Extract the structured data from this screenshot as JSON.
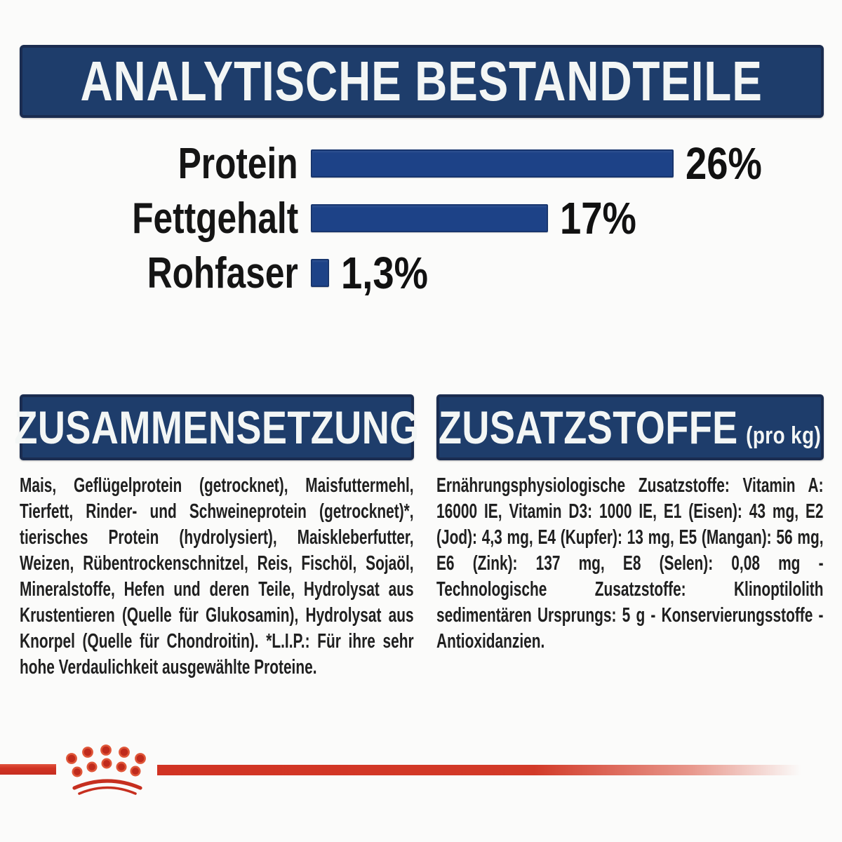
{
  "analytical": {
    "title": "ANALYTISCHE BESTANDTEILE"
  },
  "chart_data": {
    "type": "bar",
    "orientation": "horizontal",
    "title": "ANALYTISCHE BESTANDTEILE",
    "categories": [
      "Protein",
      "Fettgehalt",
      "Rohfaser"
    ],
    "values": [
      26,
      17,
      1.3
    ],
    "value_labels": [
      "26%",
      "17%",
      "1,3%"
    ],
    "unit": "%",
    "xlim": [
      0,
      30
    ],
    "grid": false,
    "legend": "none",
    "bar_color": "#1d4287"
  },
  "composition": {
    "title": "ZUSAMMENSETZUNG",
    "body": "Mais, Geflügelprotein (getrocknet), Maisfuttermehl, Tierfett, Rinder- und Schweineprotein (getrocknet)*, tierisches Protein (hydrolysiert), Maiskleberfutter, Weizen, Rübentrockenschnitzel, Reis, Fischöl, Sojaöl, Mineralstoffe, Hefen und deren Teile, Hydrolysat aus Krustentieren (Quelle für Glukosamin), Hydrolysat aus Knorpel (Quelle für Chondroitin). *L.I.P.: Für ihre sehr hohe Verdaulichkeit ausgewählte Proteine."
  },
  "additives": {
    "title": "ZUSATZSTOFFE",
    "unit": "(pro kg)",
    "body": "Ernährungsphysiologische Zusatzstoffe: Vitamin A: 16000 IE, Vitamin D3: 1000 IE, E1 (Eisen): 43 mg, E2 (Jod): 4,3 mg, E4 (Kupfer): 13 mg, E5 (Mangan): 56 mg, E6 (Zink): 137 mg, E8 (Selen): 0,08 mg - Technologische Zusatzstoffe: Klinoptilolith sedimentären Ursprungs: 5 g - Konservierungsstoffe - Antioxidanzien."
  },
  "footer": {
    "logo": "royal-canin-crown"
  },
  "colors": {
    "header_navy": "#1e3d6b",
    "header_border": "#1a2c50",
    "bar_blue": "#1d4287",
    "brand_red": "#d13323",
    "text_dark": "#1b1b1b",
    "background": "#fbfbfa"
  }
}
